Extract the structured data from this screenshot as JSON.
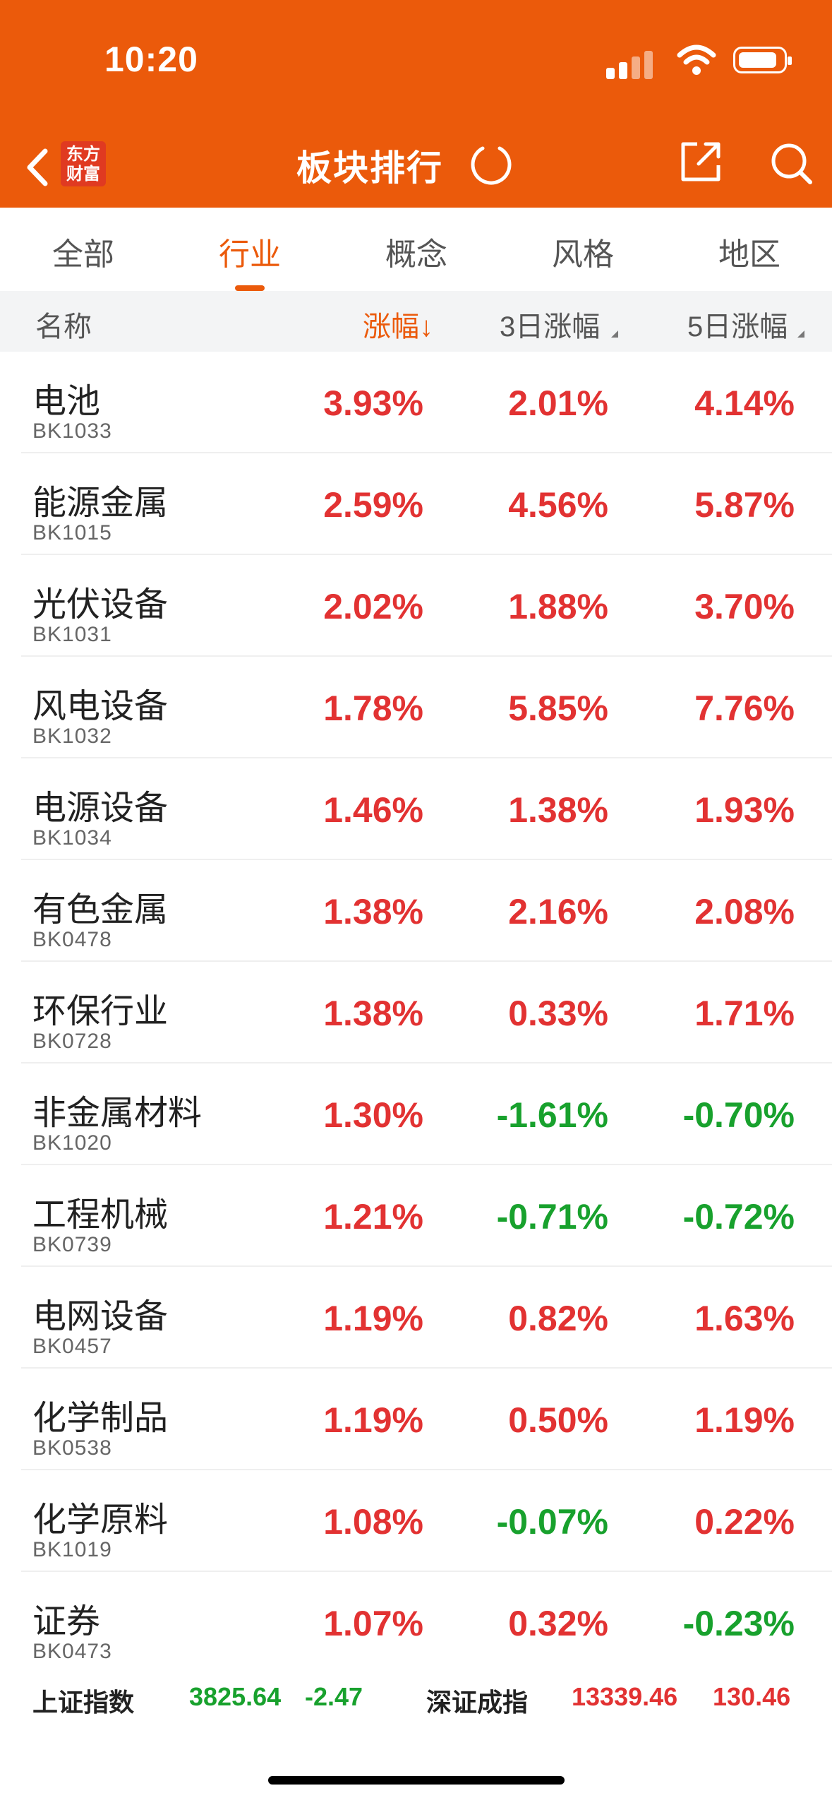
{
  "status": {
    "time": "10:20"
  },
  "header": {
    "title": "板块排行",
    "logo_line1": "东方",
    "logo_line2": "财富"
  },
  "tabs": [
    {
      "label": "全部"
    },
    {
      "label": "行业"
    },
    {
      "label": "概念"
    },
    {
      "label": "风格"
    },
    {
      "label": "地区"
    }
  ],
  "active_tab": "行业",
  "columns": {
    "name": "名称",
    "change": "涨幅↓",
    "change3d": "3日涨幅",
    "change5d": "5日涨幅"
  },
  "rows": [
    {
      "name": "电池",
      "code": "BK1033",
      "change": "3.93%",
      "change3d": "2.01%",
      "change5d": "4.14%"
    },
    {
      "name": "能源金属",
      "code": "BK1015",
      "change": "2.59%",
      "change3d": "4.56%",
      "change5d": "5.87%"
    },
    {
      "name": "光伏设备",
      "code": "BK1031",
      "change": "2.02%",
      "change3d": "1.88%",
      "change5d": "3.70%"
    },
    {
      "name": "风电设备",
      "code": "BK1032",
      "change": "1.78%",
      "change3d": "5.85%",
      "change5d": "7.76%"
    },
    {
      "name": "电源设备",
      "code": "BK1034",
      "change": "1.46%",
      "change3d": "1.38%",
      "change5d": "1.93%"
    },
    {
      "name": "有色金属",
      "code": "BK0478",
      "change": "1.38%",
      "change3d": "2.16%",
      "change5d": "2.08%"
    },
    {
      "name": "环保行业",
      "code": "BK0728",
      "change": "1.38%",
      "change3d": "0.33%",
      "change5d": "1.71%"
    },
    {
      "name": "非金属材料",
      "code": "BK1020",
      "change": "1.30%",
      "change3d": "-1.61%",
      "change5d": "-0.70%"
    },
    {
      "name": "工程机械",
      "code": "BK0739",
      "change": "1.21%",
      "change3d": "-0.71%",
      "change5d": "-0.72%"
    },
    {
      "name": "电网设备",
      "code": "BK0457",
      "change": "1.19%",
      "change3d": "0.82%",
      "change5d": "1.63%"
    },
    {
      "name": "化学制品",
      "code": "BK0538",
      "change": "1.19%",
      "change3d": "0.50%",
      "change5d": "1.19%"
    },
    {
      "name": "化学原料",
      "code": "BK1019",
      "change": "1.08%",
      "change3d": "-0.07%",
      "change5d": "0.22%"
    },
    {
      "name": "证券",
      "code": "BK0473",
      "change": "1.07%",
      "change3d": "0.32%",
      "change5d": "-0.23%"
    }
  ],
  "footer": {
    "sh_label": "上证指数",
    "sh_value": "3825.64",
    "sh_change": "-2.47",
    "sz_label": "深证成指",
    "sz_value": "13339.46",
    "sz_change": "130.46"
  },
  "colors": {
    "brand": "#EB5A0B",
    "up": "#E23232",
    "down": "#18A12D"
  }
}
